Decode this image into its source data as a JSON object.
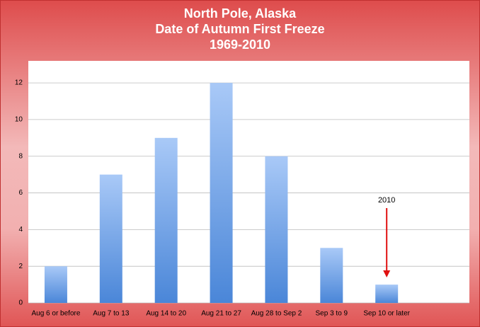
{
  "chart_data": {
    "type": "bar",
    "title_lines": [
      "North Pole, Alaska",
      "Date of Autumn First Freeze",
      "1969-2010"
    ],
    "categories": [
      "Aug 6 or before",
      "Aug 7 to 13",
      "Aug 14 to 20",
      "Aug 21 to 27",
      "Aug 28 to Sep 2",
      "Sep 3 to 9",
      "Sep 10 or later",
      null
    ],
    "values": [
      2,
      7,
      9,
      12,
      8,
      3,
      1,
      null
    ],
    "color": "#4a86d8",
    "ylim": [
      0,
      13.2
    ],
    "yticks": [
      0,
      2,
      4,
      6,
      8,
      10,
      12
    ],
    "grid": true,
    "annotations": [
      {
        "text": "2010",
        "color": "#e01010"
      }
    ]
  }
}
